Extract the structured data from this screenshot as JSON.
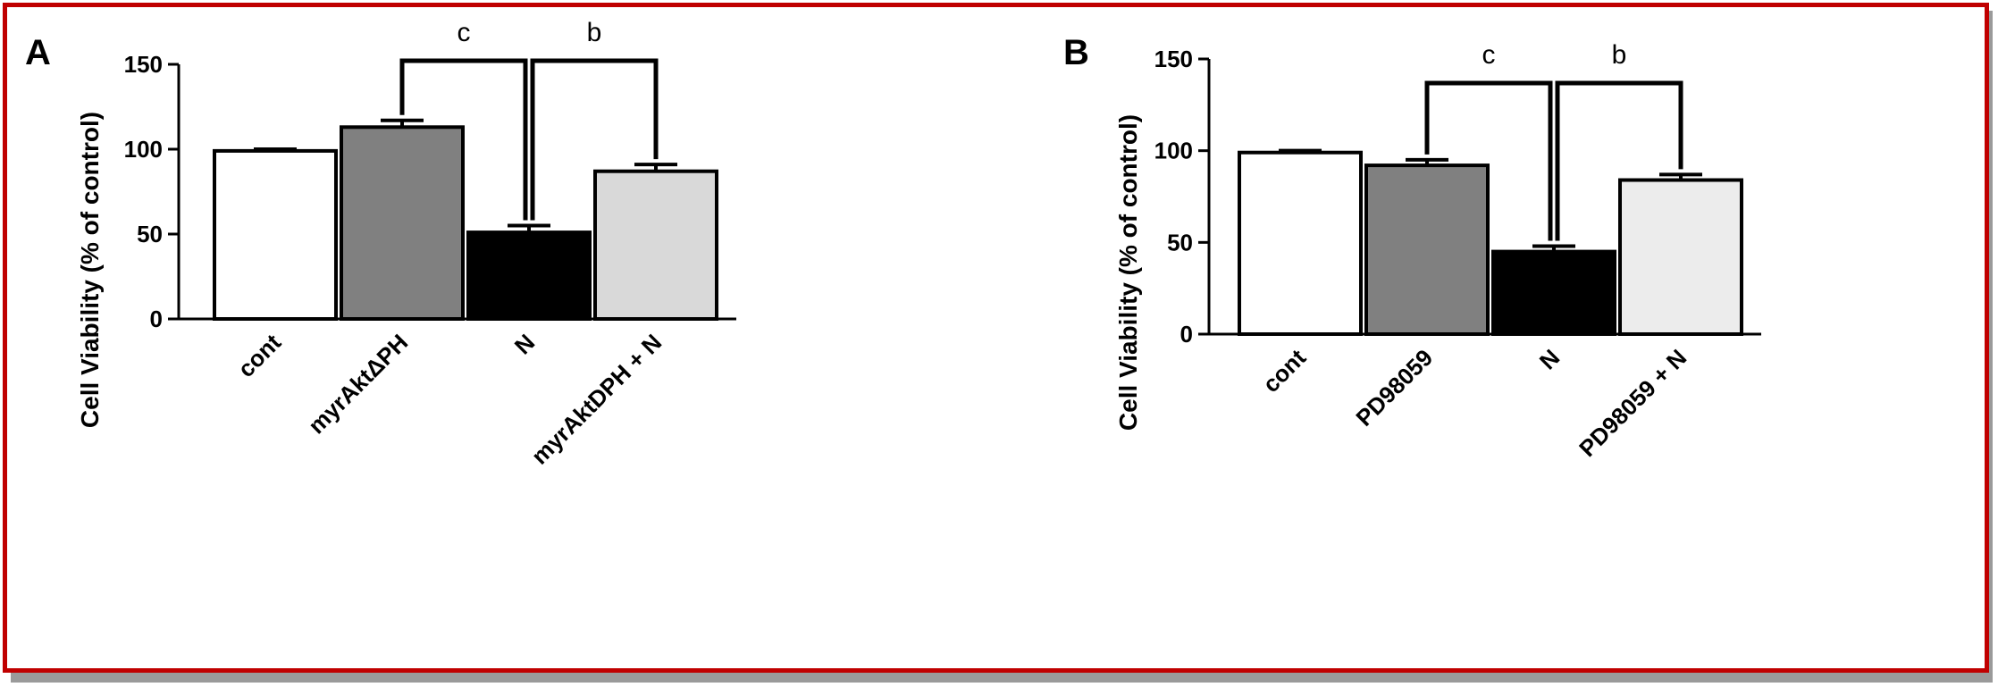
{
  "chart_data": [
    {
      "type": "bar",
      "panel_label": "A",
      "ylabel": "Cell Viability (% of control)",
      "ylim": [
        0,
        150
      ],
      "yticks": [
        0,
        50,
        100,
        150
      ],
      "categories": [
        "cont",
        "myrAktΔPH",
        "N",
        "myrAktDPH + N"
      ],
      "values": [
        99,
        113,
        51,
        87
      ],
      "errors": [
        1,
        4,
        4,
        4
      ],
      "bar_colors": [
        "#ffffff",
        "#808080",
        "#000000",
        "#d9d9d9"
      ],
      "significance": [
        {
          "label": "c",
          "from": "myrAktΔPH",
          "to": "N"
        },
        {
          "label": "b",
          "from": "N",
          "to": "myrAktDPH + N"
        }
      ],
      "grid": false
    },
    {
      "type": "bar",
      "panel_label": "B",
      "ylabel": "Cell Viability (% of control)",
      "ylim": [
        0,
        150
      ],
      "yticks": [
        0,
        50,
        100,
        150
      ],
      "categories": [
        "cont",
        "PD98059",
        "N",
        "PD98059 + N"
      ],
      "values": [
        99,
        92,
        45,
        84
      ],
      "errors": [
        1,
        3,
        3,
        3
      ],
      "bar_colors": [
        "#ffffff",
        "#808080",
        "#000000",
        "#ececec"
      ],
      "significance": [
        {
          "label": "c",
          "from": "PD98059",
          "to": "N"
        },
        {
          "label": "b",
          "from": "N",
          "to": "PD98059 + N"
        }
      ],
      "grid": false
    }
  ]
}
